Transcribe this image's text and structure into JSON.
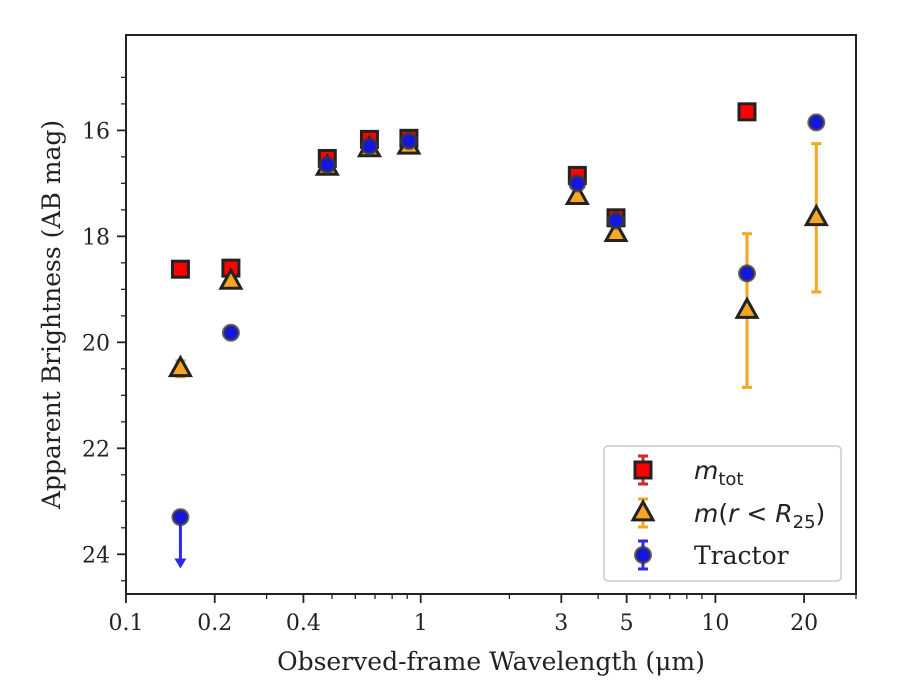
{
  "chart_data": {
    "type": "scatter",
    "xlabel": "Observed-frame Wavelength (μm)",
    "ylabel": "Apparent Brightness (AB mag)",
    "x_scale": "log",
    "xlim": [
      0.1,
      30
    ],
    "ylim": [
      24.75,
      14.2
    ],
    "y_inverted": true,
    "grid": false,
    "legend_position": "bottom-right",
    "x_ticks": [
      {
        "value": 0.1,
        "label": "0.1"
      },
      {
        "value": 0.2,
        "label": "0.2"
      },
      {
        "value": 0.4,
        "label": "0.4"
      },
      {
        "value": 1,
        "label": "1"
      },
      {
        "value": 3,
        "label": "3"
      },
      {
        "value": 5,
        "label": "5"
      },
      {
        "value": 10,
        "label": "10"
      },
      {
        "value": 20,
        "label": "20"
      }
    ],
    "y_ticks": [
      {
        "value": 16,
        "label": "16"
      },
      {
        "value": 18,
        "label": "18"
      },
      {
        "value": 20,
        "label": "20"
      },
      {
        "value": 22,
        "label": "22"
      },
      {
        "value": 24,
        "label": "24"
      }
    ],
    "series": [
      {
        "name": "m_tot",
        "legend_label": "mtot",
        "marker": "square",
        "color": "#ff0000",
        "edge_color": "#222222",
        "error_color": "#d62728",
        "points": [
          {
            "x": 0.153,
            "y": 18.62,
            "err": 0.03
          },
          {
            "x": 0.227,
            "y": 18.6,
            "err": 0.03
          },
          {
            "x": 0.482,
            "y": 16.53,
            "err": 0.02
          },
          {
            "x": 0.67,
            "y": 16.17,
            "err": 0.02
          },
          {
            "x": 0.912,
            "y": 16.15,
            "err": 0.02
          },
          {
            "x": 3.4,
            "y": 16.85,
            "err": 0.02
          },
          {
            "x": 4.6,
            "y": 17.65,
            "err": 0.02
          },
          {
            "x": 12.8,
            "y": 15.65,
            "err": 0.02
          }
        ]
      },
      {
        "name": "m(r<R25)",
        "legend_label": "m(r < R25)",
        "marker": "triangle",
        "color": "#f5a623",
        "edge_color": "#222222",
        "error_color": "#f5a623",
        "points": [
          {
            "x": 0.153,
            "y": 20.5,
            "err": 0.15
          },
          {
            "x": 0.227,
            "y": 18.85,
            "err": 0.08
          },
          {
            "x": 0.482,
            "y": 16.7,
            "err": 0.03
          },
          {
            "x": 0.67,
            "y": 16.35,
            "err": 0.03
          },
          {
            "x": 0.912,
            "y": 16.3,
            "err": 0.03
          },
          {
            "x": 3.4,
            "y": 17.25,
            "err": 0.03
          },
          {
            "x": 4.6,
            "y": 17.95,
            "err": 0.03
          },
          {
            "x": 12.8,
            "y": 19.4,
            "err": 1.45
          },
          {
            "x": 22.0,
            "y": 17.65,
            "err": 1.4
          }
        ]
      },
      {
        "name": "Tractor",
        "legend_label": "Tractor",
        "marker": "circle",
        "color": "#1515e0",
        "edge_color": "#3a3a3a",
        "error_color": "#2a2ae8",
        "points": [
          {
            "x": 0.153,
            "y": 23.3,
            "err": 0.0,
            "upper_limit": true
          },
          {
            "x": 0.227,
            "y": 19.82,
            "err": 0.03
          },
          {
            "x": 0.482,
            "y": 16.65,
            "err": 0.02
          },
          {
            "x": 0.67,
            "y": 16.3,
            "err": 0.02
          },
          {
            "x": 0.912,
            "y": 16.2,
            "err": 0.02
          },
          {
            "x": 3.4,
            "y": 17.0,
            "err": 0.02
          },
          {
            "x": 4.6,
            "y": 17.7,
            "err": 0.02
          },
          {
            "x": 12.8,
            "y": 18.7,
            "err": 0.03
          },
          {
            "x": 22.0,
            "y": 15.85,
            "err": 0.03
          }
        ]
      }
    ]
  }
}
